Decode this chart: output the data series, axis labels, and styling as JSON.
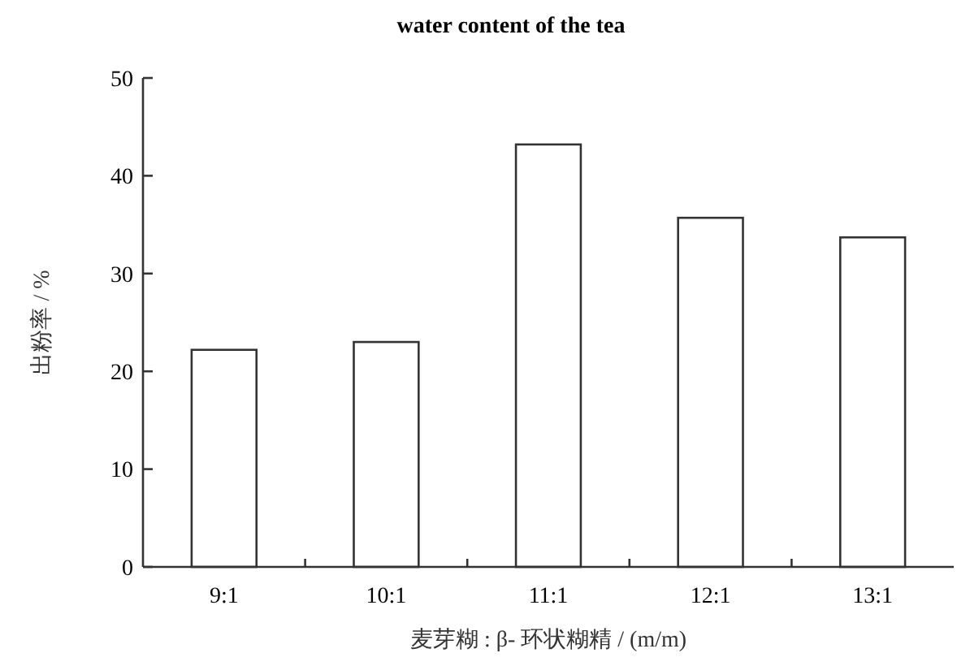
{
  "chart_data": {
    "type": "bar",
    "title": "water content of the tea",
    "xlabel": "麦芽糊 : β- 环状糊精 / (m/m)",
    "ylabel": "出粉率 / %",
    "categories": [
      "9:1",
      "10:1",
      "11:1",
      "12:1",
      "13:1"
    ],
    "values": [
      22.2,
      23,
      43.2,
      35.7,
      33.7
    ],
    "color": "#ffffff",
    "ylim": [
      0,
      50
    ],
    "yticks": [
      0,
      10,
      20,
      30,
      40,
      50
    ],
    "grid": false
  }
}
